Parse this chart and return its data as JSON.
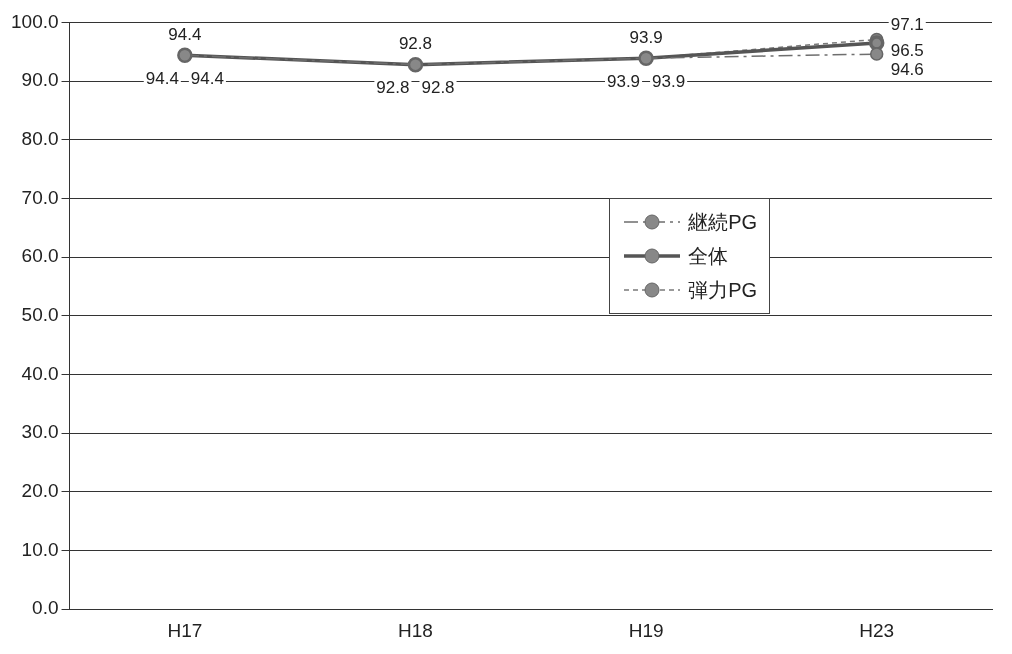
{
  "chart_data": {
    "type": "line",
    "categories": [
      "H17",
      "H18",
      "H19",
      "H23"
    ],
    "series": [
      {
        "name": "継続PG",
        "color": "#6e6e6e",
        "values": [
          94.4,
          92.8,
          93.9,
          94.6
        ],
        "line_style": "dashed"
      },
      {
        "name": "全体",
        "color": "#555555",
        "values": [
          94.4,
          92.8,
          93.9,
          96.5
        ],
        "line_style": "solid"
      },
      {
        "name": "弾力PG",
        "color": "#7a7a7a",
        "values": [
          94.4,
          92.8,
          93.9,
          97.1
        ],
        "line_style": "dotted"
      }
    ],
    "ylim": [
      0,
      100
    ],
    "yticks": [
      {
        "value": 0,
        "label": "0.0"
      },
      {
        "value": 10,
        "label": "10.0"
      },
      {
        "value": 20,
        "label": "20.0"
      },
      {
        "value": 30,
        "label": "30.0"
      },
      {
        "value": 40,
        "label": "40.0"
      },
      {
        "value": 50,
        "label": "50.0"
      },
      {
        "value": 60,
        "label": "60.0"
      },
      {
        "value": 70,
        "label": "70.0"
      },
      {
        "value": 80,
        "label": "80.0"
      },
      {
        "value": 90,
        "label": "90.0"
      },
      {
        "value": 100,
        "label": "100.0"
      }
    ],
    "grid": "y",
    "legend": "right",
    "marker": "circle",
    "data_labels": true
  }
}
